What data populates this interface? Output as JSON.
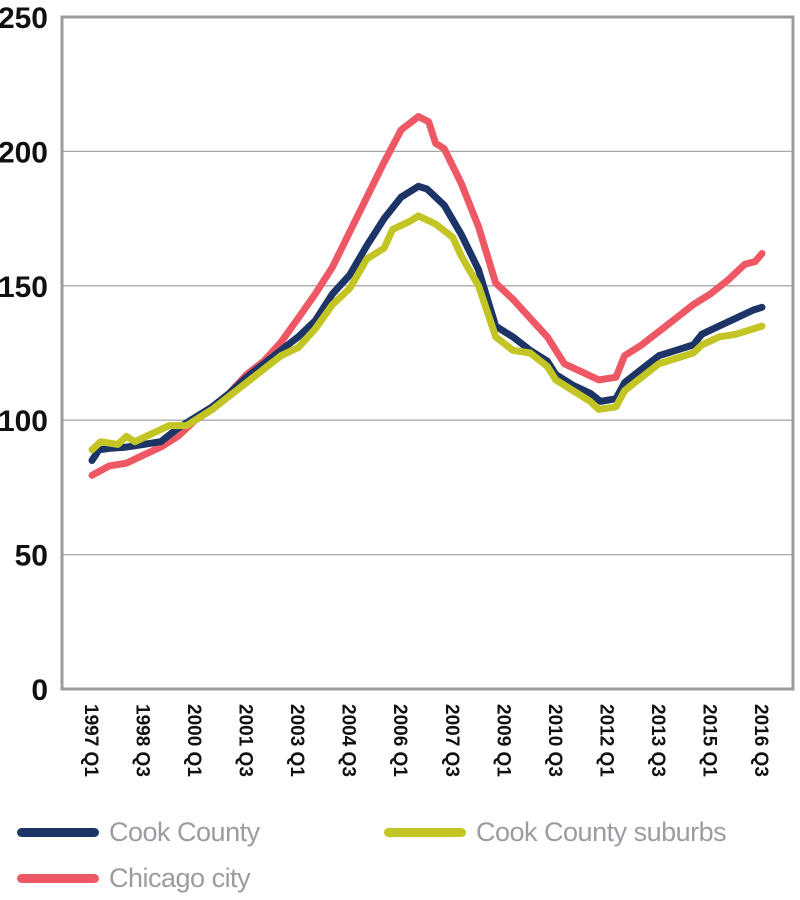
{
  "chart_data": {
    "type": "line",
    "title": "",
    "xlabel": "",
    "ylabel": "",
    "ylim": [
      0,
      250
    ],
    "yticks": [
      0,
      50,
      100,
      150,
      200,
      250
    ],
    "x_tick_labels": [
      "1997 Q1",
      "1998 Q3",
      "2000 Q1",
      "2001 Q3",
      "2003 Q1",
      "2004 Q3",
      "2006 Q1",
      "2007 Q3",
      "2009 Q1",
      "2010 Q3",
      "2012 Q1",
      "2013 Q3",
      "2015 Q1",
      "2016 Q3"
    ],
    "x_start": 1997.0,
    "x_end": 2016.5,
    "grid": "horizontal",
    "series": [
      {
        "name": "Chicago city",
        "color": "#ee5865",
        "points": [
          [
            1997.0,
            79.5
          ],
          [
            1997.5,
            83
          ],
          [
            1998.0,
            84
          ],
          [
            1998.5,
            87
          ],
          [
            1999.0,
            90
          ],
          [
            1999.5,
            94
          ],
          [
            2000.0,
            100
          ],
          [
            2000.5,
            104
          ],
          [
            2001.0,
            110
          ],
          [
            2001.5,
            117
          ],
          [
            2002.0,
            122
          ],
          [
            2002.5,
            129
          ],
          [
            2003.0,
            138
          ],
          [
            2003.5,
            147
          ],
          [
            2004.0,
            157
          ],
          [
            2004.5,
            170
          ],
          [
            2005.0,
            183
          ],
          [
            2005.5,
            196
          ],
          [
            2006.0,
            208
          ],
          [
            2006.5,
            213
          ],
          [
            2006.8,
            211
          ],
          [
            2007.0,
            203
          ],
          [
            2007.25,
            201
          ],
          [
            2007.75,
            188
          ],
          [
            2008.25,
            172
          ],
          [
            2008.75,
            151
          ],
          [
            2009.25,
            145
          ],
          [
            2009.75,
            138
          ],
          [
            2010.25,
            131
          ],
          [
            2010.75,
            121
          ],
          [
            2011.25,
            118
          ],
          [
            2011.75,
            115
          ],
          [
            2012.25,
            116
          ],
          [
            2012.5,
            124
          ],
          [
            2013.0,
            128
          ],
          [
            2013.5,
            133
          ],
          [
            2014.0,
            138
          ],
          [
            2014.5,
            143
          ],
          [
            2015.0,
            147
          ],
          [
            2015.5,
            152
          ],
          [
            2016.0,
            158
          ],
          [
            2016.3,
            159
          ],
          [
            2016.5,
            162
          ]
        ]
      },
      {
        "name": "Cook County",
        "color": "#1c3566",
        "points": [
          [
            1997.0,
            85
          ],
          [
            1997.2,
            89
          ],
          [
            1997.5,
            89.5
          ],
          [
            1998.0,
            90
          ],
          [
            1998.5,
            91
          ],
          [
            1999.0,
            92
          ],
          [
            1999.5,
            97
          ],
          [
            2000.0,
            101
          ],
          [
            2000.5,
            105
          ],
          [
            2001.0,
            110
          ],
          [
            2001.5,
            116
          ],
          [
            2002.0,
            121
          ],
          [
            2002.5,
            126
          ],
          [
            2003.0,
            131
          ],
          [
            2003.5,
            137
          ],
          [
            2004.0,
            147
          ],
          [
            2004.5,
            154
          ],
          [
            2005.0,
            165
          ],
          [
            2005.5,
            175
          ],
          [
            2006.0,
            183
          ],
          [
            2006.5,
            187
          ],
          [
            2006.75,
            186
          ],
          [
            2007.25,
            180
          ],
          [
            2007.75,
            169
          ],
          [
            2008.25,
            156
          ],
          [
            2008.75,
            135
          ],
          [
            2009.25,
            131
          ],
          [
            2009.75,
            126
          ],
          [
            2010.25,
            122
          ],
          [
            2010.5,
            117
          ],
          [
            2011.0,
            113
          ],
          [
            2011.5,
            110
          ],
          [
            2011.8,
            107
          ],
          [
            2012.25,
            108
          ],
          [
            2012.5,
            114
          ],
          [
            2013.0,
            119
          ],
          [
            2013.5,
            124
          ],
          [
            2014.0,
            126
          ],
          [
            2014.5,
            128
          ],
          [
            2014.75,
            132
          ],
          [
            2015.25,
            135
          ],
          [
            2015.75,
            138
          ],
          [
            2016.25,
            141
          ],
          [
            2016.5,
            142
          ]
        ]
      },
      {
        "name": "Cook County suburbs",
        "color": "#c3c524",
        "points": [
          [
            1997.0,
            89
          ],
          [
            1997.25,
            92
          ],
          [
            1997.75,
            91
          ],
          [
            1998.0,
            94
          ],
          [
            1998.25,
            92
          ],
          [
            1998.75,
            95
          ],
          [
            1999.25,
            98
          ],
          [
            1999.75,
            98
          ],
          [
            2000.0,
            100
          ],
          [
            2000.5,
            104
          ],
          [
            2001.0,
            109
          ],
          [
            2001.5,
            114
          ],
          [
            2002.0,
            119
          ],
          [
            2002.5,
            124
          ],
          [
            2003.0,
            127
          ],
          [
            2003.5,
            134
          ],
          [
            2004.0,
            143
          ],
          [
            2004.5,
            149
          ],
          [
            2005.0,
            160
          ],
          [
            2005.5,
            164
          ],
          [
            2005.75,
            171
          ],
          [
            2006.25,
            174
          ],
          [
            2006.5,
            176
          ],
          [
            2007.0,
            173
          ],
          [
            2007.5,
            168
          ],
          [
            2007.75,
            161
          ],
          [
            2008.25,
            150
          ],
          [
            2008.75,
            131
          ],
          [
            2009.25,
            126
          ],
          [
            2009.75,
            125
          ],
          [
            2010.25,
            120
          ],
          [
            2010.5,
            115
          ],
          [
            2011.0,
            111
          ],
          [
            2011.5,
            107
          ],
          [
            2011.75,
            104
          ],
          [
            2012.25,
            105
          ],
          [
            2012.5,
            111
          ],
          [
            2013.0,
            116
          ],
          [
            2013.5,
            121
          ],
          [
            2014.0,
            123
          ],
          [
            2014.5,
            125
          ],
          [
            2014.75,
            128
          ],
          [
            2015.25,
            131
          ],
          [
            2015.75,
            132
          ],
          [
            2016.25,
            134
          ],
          [
            2016.5,
            135
          ]
        ]
      }
    ],
    "legend": {
      "placement": "bottom",
      "order": [
        "Cook County",
        "Cook County suburbs",
        "Chicago city"
      ]
    }
  }
}
